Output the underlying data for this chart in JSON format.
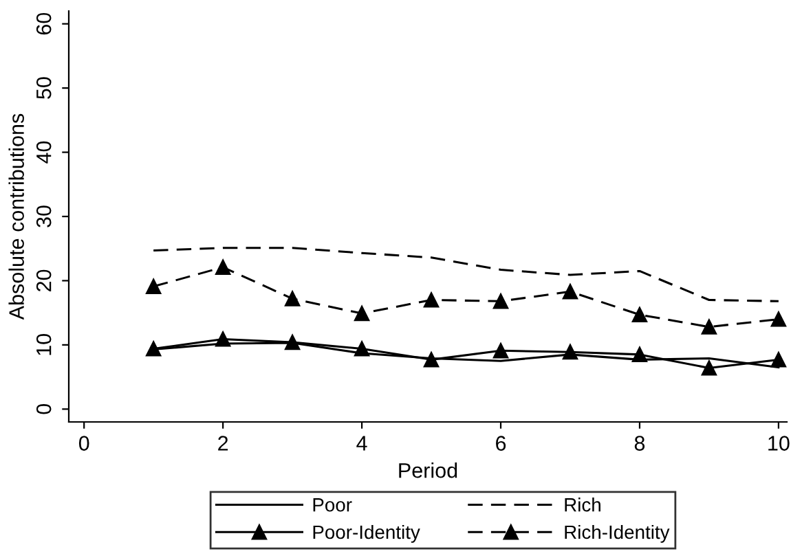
{
  "chart_data": {
    "type": "line",
    "xlabel": "Period",
    "ylabel": "Absolute contributions",
    "x": [
      1,
      2,
      3,
      4,
      5,
      6,
      7,
      8,
      9,
      10
    ],
    "series": [
      {
        "name": "Poor",
        "color": "#000000",
        "line_style": "solid",
        "marker": "none",
        "values": [
          9.3,
          10.2,
          10.3,
          8.7,
          7.9,
          7.5,
          8.5,
          7.7,
          7.9,
          6.5
        ]
      },
      {
        "name": "Rich",
        "color": "#000000",
        "line_style": "dashed",
        "marker": "none",
        "values": [
          24.7,
          25.1,
          25.1,
          24.3,
          23.6,
          21.7,
          20.9,
          21.5,
          17.0,
          16.8
        ]
      },
      {
        "name": "Poor-Identity",
        "color": "#000000",
        "line_style": "solid",
        "marker": "triangle",
        "values": [
          9.4,
          10.9,
          10.4,
          9.4,
          7.7,
          9.1,
          8.9,
          8.5,
          6.4,
          7.7
        ]
      },
      {
        "name": "Rich-Identity",
        "color": "#000000",
        "line_style": "dashed",
        "marker": "triangle",
        "values": [
          19.1,
          22.1,
          17.2,
          14.9,
          17.0,
          16.8,
          18.3,
          14.7,
          12.8,
          14.0
        ]
      }
    ],
    "xlim": [
      -0.22,
      10.12
    ],
    "ylim": [
      -2,
      62
    ],
    "xticks": [
      0,
      2,
      4,
      6,
      8,
      10
    ],
    "yticks": [
      0,
      10,
      20,
      30,
      40,
      50,
      60
    ],
    "grid": false,
    "legend": "bottom"
  }
}
